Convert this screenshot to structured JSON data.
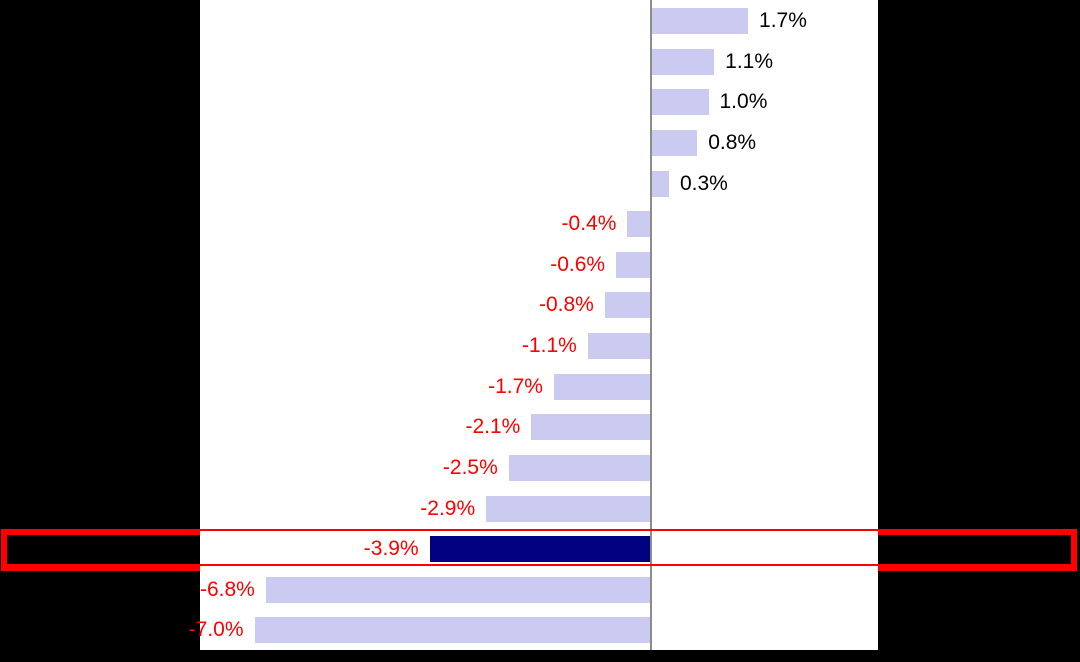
{
  "chart_data": {
    "type": "bar",
    "orientation": "horizontal",
    "values": [
      1.7,
      1.1,
      1.0,
      0.8,
      0.3,
      -0.4,
      -0.6,
      -0.8,
      -1.1,
      -1.7,
      -2.1,
      -2.5,
      -2.9,
      -3.9,
      -6.8,
      -7.0
    ],
    "labels": [
      "1.7%",
      "1.1%",
      "1.0%",
      "0.8%",
      "0.3%",
      "-0.4%",
      "-0.6%",
      "-0.8%",
      "-1.1%",
      "-1.7%",
      "-2.1%",
      "-2.5%",
      "-2.9%",
      "-3.9%",
      "-6.8%",
      "-7.0%"
    ],
    "highlighted_index": 13,
    "highlighted_label": "-3.9%",
    "title": "",
    "xlabel": "",
    "ylabel": "",
    "xlim": [
      -7.9,
      4.0
    ],
    "grid": false,
    "legend": "none",
    "zero_axis_line": true,
    "colors": {
      "bar_default": "#cbcbf2",
      "bar_highlight": "#000080",
      "label_positive": "#000000",
      "label_negative": "#ff0000",
      "axis_line": "#8c8c8c",
      "highlight_box": "#ff0000",
      "plot_background": "#ffffff",
      "canvas_background": "#000000"
    }
  }
}
